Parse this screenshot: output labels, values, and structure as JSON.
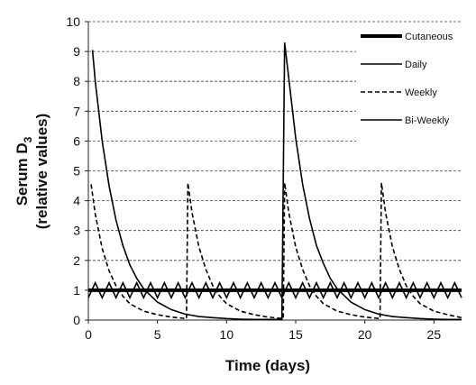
{
  "chart_data": {
    "type": "line",
    "title": "",
    "xlabel": "Time (days)",
    "ylabel_line1_main": "Serum D",
    "ylabel_line1_sub": "3",
    "ylabel_line2": "(relative values)",
    "xlim": [
      0,
      27
    ],
    "ylim": [
      0,
      10
    ],
    "xticks": [
      0,
      5,
      10,
      15,
      20,
      25
    ],
    "yticks": [
      0,
      1,
      2,
      3,
      4,
      5,
      6,
      7,
      8,
      9,
      10
    ],
    "grid": "horizontal dashed",
    "legend_position": "top-right",
    "series": [
      {
        "name": "Cutaneous",
        "style": "thick-solid",
        "color": "#000000",
        "x": [
          0,
          27
        ],
        "y": [
          1.0,
          1.0
        ]
      },
      {
        "name": "Daily",
        "style": "solid",
        "color": "#000000",
        "dose_interval_days": 1,
        "x": [
          0,
          0.5,
          1,
          1.5,
          2,
          2.5,
          3,
          3.5,
          4,
          4.5,
          5,
          5.5,
          6,
          6.5,
          7,
          7.5,
          8,
          8.5,
          9,
          9.5,
          10,
          10.5,
          11,
          11.5,
          12,
          12.5,
          13,
          13.5,
          14,
          14.5,
          15,
          15.5,
          16,
          16.5,
          17,
          17.5,
          18,
          18.5,
          19,
          19.5,
          20,
          20.5,
          21,
          21.5,
          22,
          22.5,
          23,
          23.5,
          24,
          24.5,
          25,
          25.5,
          26,
          26.5,
          27
        ],
        "y": [
          0.75,
          1.25,
          0.75,
          1.25,
          0.75,
          1.25,
          0.75,
          1.25,
          0.75,
          1.25,
          0.75,
          1.25,
          0.75,
          1.25,
          0.75,
          1.25,
          0.75,
          1.25,
          0.75,
          1.25,
          0.75,
          1.25,
          0.75,
          1.25,
          0.75,
          1.25,
          0.75,
          1.25,
          0.75,
          1.25,
          0.75,
          1.25,
          0.75,
          1.25,
          0.75,
          1.25,
          0.75,
          1.25,
          0.75,
          1.25,
          0.75,
          1.25,
          0.75,
          1.25,
          0.75,
          1.25,
          0.75,
          1.25,
          0.75,
          1.25,
          0.75,
          1.25,
          0.75,
          1.25,
          0.75
        ]
      },
      {
        "name": "Weekly",
        "style": "dashed",
        "color": "#000000",
        "dose_interval_days": 7,
        "x": [
          0.2,
          0.5,
          1,
          1.5,
          2,
          2.5,
          3,
          4,
          5,
          6,
          7.1,
          7.2,
          7.5,
          8,
          8.5,
          9,
          9.5,
          10,
          11,
          12,
          13,
          14.1,
          14.2,
          14.5,
          15,
          15.5,
          16,
          16.5,
          17,
          18,
          19,
          20,
          21.1,
          21.2,
          21.5,
          22,
          22.5,
          23,
          23.5,
          24,
          25,
          26,
          27
        ],
        "y": [
          4.55,
          3.55,
          2.4,
          1.65,
          1.15,
          0.8,
          0.55,
          0.3,
          0.18,
          0.1,
          0.05,
          4.6,
          3.6,
          2.45,
          1.7,
          1.15,
          0.8,
          0.55,
          0.3,
          0.18,
          0.1,
          0.05,
          4.6,
          3.6,
          2.45,
          1.7,
          1.15,
          0.8,
          0.55,
          0.3,
          0.18,
          0.1,
          0.05,
          4.6,
          3.6,
          2.45,
          1.7,
          1.15,
          0.8,
          0.55,
          0.3,
          0.18,
          0.08
        ]
      },
      {
        "name": "Bi-Weekly",
        "style": "solid",
        "color": "#000000",
        "dose_interval_days": 14,
        "x": [
          0.3,
          0.5,
          1,
          1.5,
          2,
          2.5,
          3,
          3.5,
          4,
          5,
          6,
          7,
          8,
          9,
          10,
          11,
          12,
          13,
          14.0,
          14.2,
          14.5,
          15,
          15.5,
          16,
          16.5,
          17,
          17.5,
          18,
          19,
          20,
          21,
          22,
          23,
          24,
          25,
          26,
          27
        ],
        "y": [
          9.05,
          8.0,
          6.0,
          4.5,
          3.35,
          2.5,
          1.85,
          1.4,
          1.05,
          0.6,
          0.35,
          0.2,
          0.12,
          0.08,
          0.05,
          0.03,
          0.02,
          0.02,
          0.02,
          9.3,
          8.1,
          6.1,
          4.55,
          3.4,
          2.5,
          1.9,
          1.4,
          1.05,
          0.6,
          0.35,
          0.2,
          0.12,
          0.08,
          0.05,
          0.03,
          0.02,
          0.02
        ]
      }
    ]
  }
}
